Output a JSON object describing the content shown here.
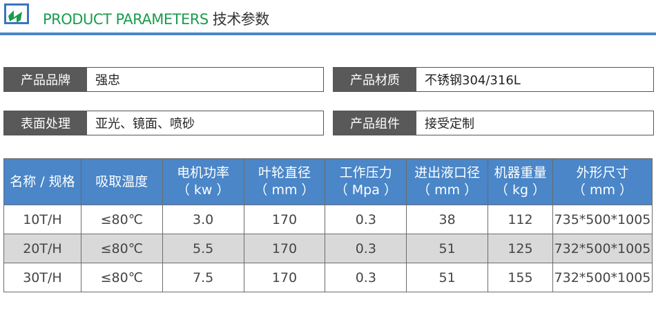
{
  "header": {
    "title_en": "PRODUCT PARAMETERS",
    "title_cn": "技术参数",
    "accent": "#4a86c8",
    "title_color": "#1a9c4f"
  },
  "info": [
    {
      "label": "产品品牌",
      "value": "强忠"
    },
    {
      "label": "产品材质",
      "value": "不锈钢304/316L"
    },
    {
      "label": "表面处理",
      "value": "亚光、镜面、喷砂"
    },
    {
      "label": "产品组件",
      "value": "接受定制"
    }
  ],
  "table": {
    "headers": [
      [
        "名称 / 规格",
        ""
      ],
      [
        "吸取温度",
        ""
      ],
      [
        "电机功率",
        "（ kw ）"
      ],
      [
        "叶轮直径",
        "（ mm ）"
      ],
      [
        "工作压力",
        "（ Mpa ）"
      ],
      [
        "进出液口径",
        "（ mm ）"
      ],
      [
        "机器重量",
        "（ kg ）"
      ],
      [
        "外形尺寸",
        "（ mm ）"
      ]
    ],
    "rows": [
      [
        "10T/H",
        "≤80℃",
        "3.0",
        "170",
        "0.3",
        "38",
        "112",
        "735*500*1005"
      ],
      [
        "20T/H",
        "≤80℃",
        "5.5",
        "170",
        "0.3",
        "51",
        "125",
        "732*500*1005"
      ],
      [
        "30T/H",
        "≤80℃",
        "7.5",
        "170",
        "0.3",
        "51",
        "155",
        "732*500*1005"
      ]
    ]
  }
}
